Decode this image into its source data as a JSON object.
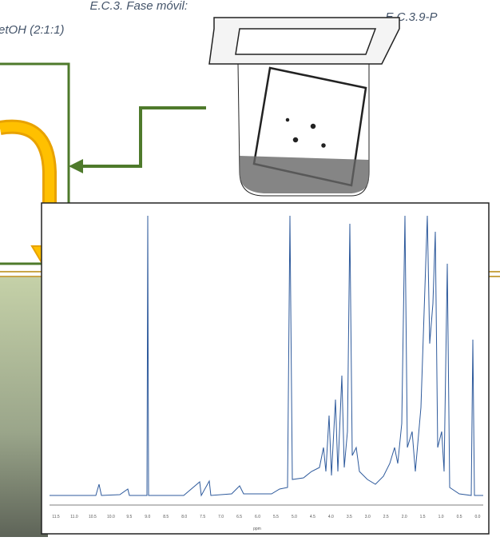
{
  "labels": {
    "mobile_phase_title": "E.C.3. Fase móvil:",
    "mobile_phase_ratio": "etOH (2:1:1)",
    "sample_code": "E.C.3.9-P"
  },
  "spectrum": {
    "x_axis_ticks": [
      "11.5",
      "11.0",
      "10.5",
      "10.0",
      "9.5",
      "9.0",
      "8.5",
      "8.0",
      "7.5",
      "7.0",
      "6.5",
      "6.0",
      "5.5",
      "5.0",
      "4.5",
      "4.0",
      "3.5",
      "3.0",
      "2.5",
      "2.0",
      "1.5",
      "1.0",
      "0.5",
      "0.0"
    ],
    "x_axis_label": "ppm"
  }
}
